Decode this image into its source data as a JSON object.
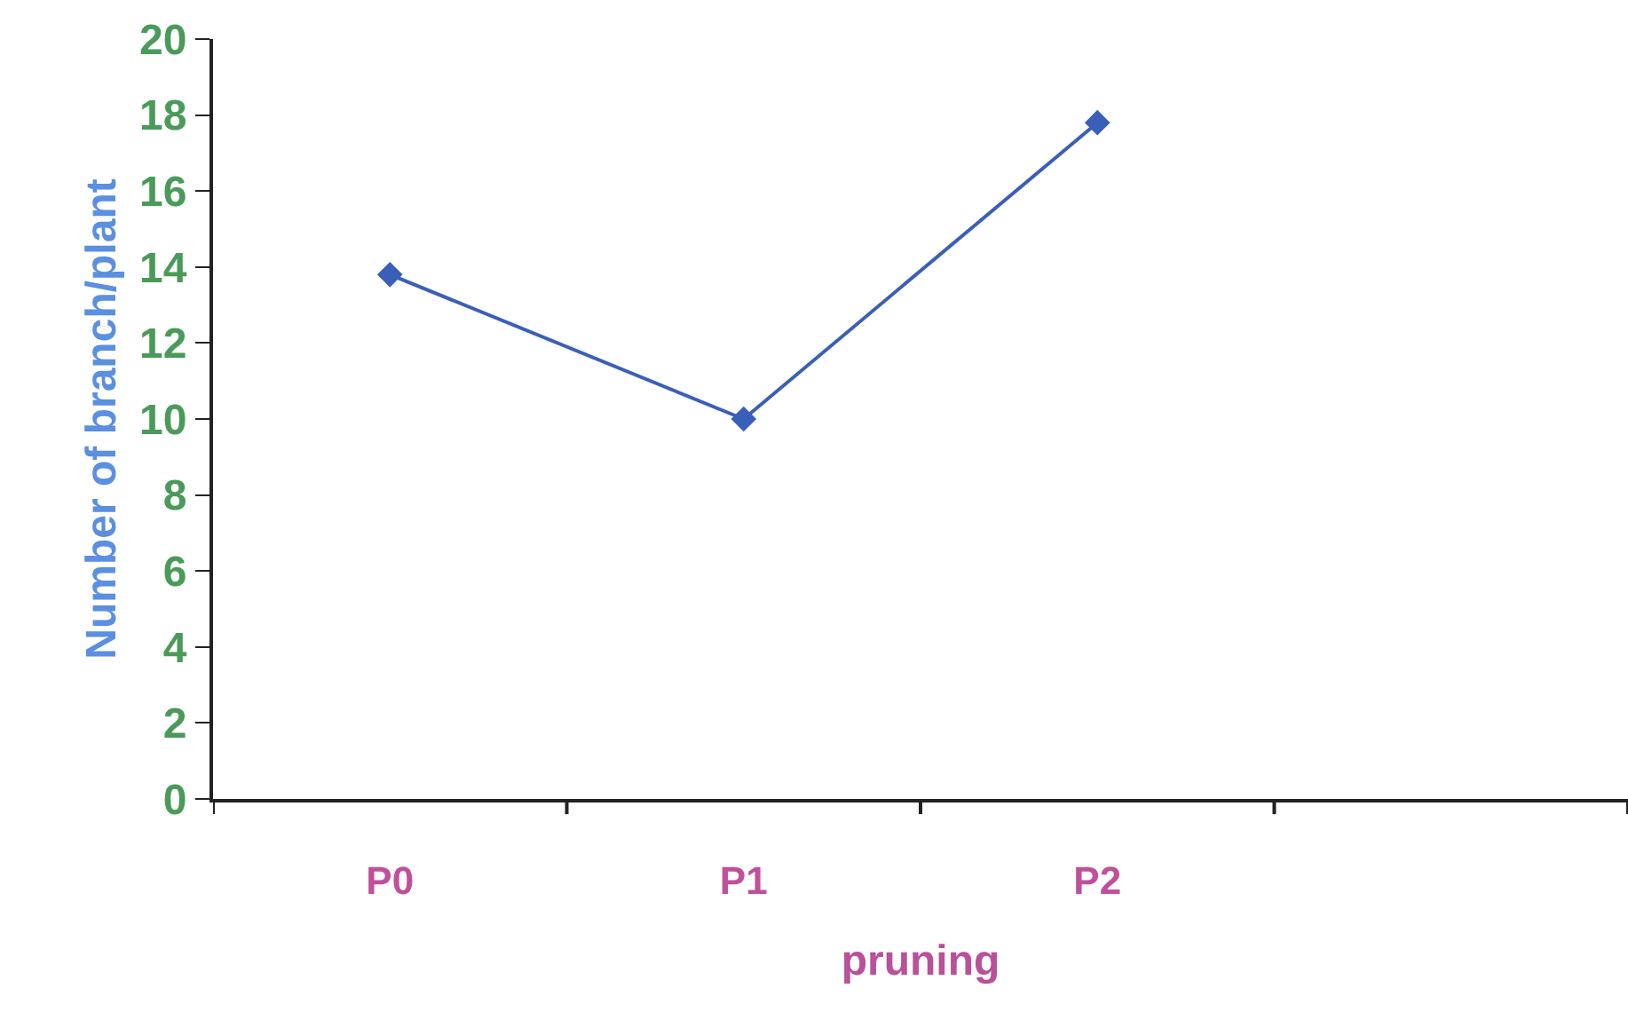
{
  "chart_data": {
    "type": "line",
    "xlabel": "pruning",
    "ylabel": "Number of branch/plant",
    "categories": [
      "P0",
      "P1",
      "P2",
      null
    ],
    "series": [
      {
        "color": "#3a5fb8",
        "values": [
          13.8,
          10.0,
          17.8,
          null
        ]
      }
    ],
    "ylim": [
      0,
      20
    ],
    "yticks": [
      0,
      2,
      4,
      6,
      8,
      10,
      12,
      14,
      16,
      18,
      20
    ],
    "marker": "diamond",
    "line_style": "solid"
  }
}
